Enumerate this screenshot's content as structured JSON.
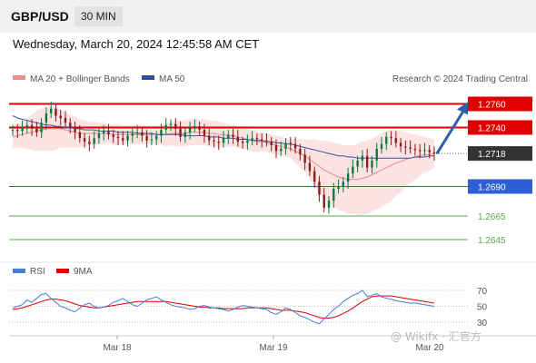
{
  "header": {
    "symbol": "GBP/USD",
    "timeframe": "30 MIN"
  },
  "datetime": "Wednesday, March 20, 2024 12:45:58 AM CET",
  "legend": {
    "ma20_bb": "MA 20 + Bollinger Bands",
    "ma50": "MA 50",
    "rsi": "RSI",
    "ma9": "9MA"
  },
  "credit": "Research © 2024 Trading Central",
  "watermark": "@ Wikifx · 汇官方",
  "colors": {
    "resistance": "#e00000",
    "pivot": "#2d5fd6",
    "support": "#5aa84a",
    "candle_up": "#0a7a3a",
    "candle_down": "#8b1d1d",
    "bb_fill": "#fbd9d9",
    "ma20": "#e68a8a",
    "ma50": "#3a4fa0",
    "rsi": "#4a7bd6",
    "ma9": "#e00000",
    "current_price_tag": "#333333",
    "arrow": "#2f5ea8"
  },
  "chart_data": {
    "type": "candlestick",
    "instrument": "GBP/USD",
    "interval": "30 MIN",
    "ylim": [
      1.2625,
      1.2775
    ],
    "x_ticks": [
      "Mar 18",
      "Mar 19",
      "Mar 20"
    ],
    "levels": [
      {
        "value": 1.276,
        "label": "1.2760",
        "kind": "resistance"
      },
      {
        "value": 1.274,
        "label": "1.2740",
        "kind": "resistance"
      },
      {
        "value": 1.2718,
        "label": "1.2718",
        "kind": "current"
      },
      {
        "value": 1.269,
        "label": "1.2690",
        "kind": "pivot"
      },
      {
        "value": 1.2665,
        "label": "1.2665",
        "kind": "support"
      },
      {
        "value": 1.2645,
        "label": "1.2645",
        "kind": "support"
      }
    ],
    "close": [
      1.2738,
      1.2737,
      1.274,
      1.2742,
      1.2739,
      1.2736,
      1.2744,
      1.2752,
      1.2756,
      1.275,
      1.2748,
      1.2744,
      1.274,
      1.2736,
      1.2731,
      1.2728,
      1.2726,
      1.2731,
      1.2735,
      1.2737,
      1.2734,
      1.2732,
      1.2731,
      1.2729,
      1.2733,
      1.2735,
      1.2736,
      1.2733,
      1.2729,
      1.273,
      1.2733,
      1.2738,
      1.2742,
      1.2743,
      1.2739,
      1.2732,
      1.2736,
      1.274,
      1.2741,
      1.2738,
      1.2733,
      1.2729,
      1.2728,
      1.2727,
      1.2731,
      1.2734,
      1.2732,
      1.2728,
      1.2727,
      1.2729,
      1.2731,
      1.273,
      1.2729,
      1.2728,
      1.2725,
      1.272,
      1.2722,
      1.2727,
      1.2726,
      1.2722,
      1.2717,
      1.271,
      1.2703,
      1.2694,
      1.2683,
      1.2672,
      1.2678,
      1.2688,
      1.269,
      1.2694,
      1.2701,
      1.2707,
      1.2712,
      1.2716,
      1.2706,
      1.2712,
      1.2722,
      1.2726,
      1.2732,
      1.2731,
      1.2727,
      1.2724,
      1.2723,
      1.2722,
      1.2721,
      1.272,
      1.2721,
      1.2719,
      1.2718
    ],
    "ma20": [
      1.2732,
      1.2733,
      1.2734,
      1.2735,
      1.2736,
      1.2737,
      1.2738,
      1.2739,
      1.2739,
      1.2739,
      1.2739,
      1.2738,
      1.2737,
      1.2736,
      1.2735,
      1.2735,
      1.2735,
      1.2735,
      1.2735,
      1.2735,
      1.2735,
      1.2734,
      1.2734,
      1.2734,
      1.2734,
      1.2734,
      1.2734,
      1.2734,
      1.2734,
      1.2734,
      1.2734,
      1.2734,
      1.2734,
      1.2735,
      1.2735,
      1.2735,
      1.2735,
      1.2736,
      1.2736,
      1.2736,
      1.2736,
      1.2735,
      1.2735,
      1.2734,
      1.2734,
      1.2733,
      1.2733,
      1.2732,
      1.2731,
      1.273,
      1.2729,
      1.2728,
      1.2728,
      1.2727,
      1.2726,
      1.2725,
      1.2724,
      1.2723,
      1.2722,
      1.272,
      1.2718,
      1.2716,
      1.2713,
      1.271,
      1.2707,
      1.2704,
      1.2702,
      1.27,
      1.2698,
      1.2697,
      1.2696,
      1.2696,
      1.2696,
      1.2697,
      1.2698,
      1.27,
      1.2702,
      1.2704,
      1.2706,
      1.2708,
      1.271,
      1.2711,
      1.2713,
      1.2714,
      1.2715,
      1.2716,
      1.2717,
      1.2717,
      1.2718
    ],
    "bb_upper": [
      1.2742,
      1.2743,
      1.2745,
      1.2748,
      1.2751,
      1.2754,
      1.2756,
      1.2758,
      1.2758,
      1.2757,
      1.2755,
      1.2753,
      1.2751,
      1.2749,
      1.2747,
      1.2746,
      1.2745,
      1.2745,
      1.2744,
      1.2744,
      1.2743,
      1.2743,
      1.2743,
      1.2742,
      1.2742,
      1.2742,
      1.2742,
      1.2742,
      1.2742,
      1.2742,
      1.2742,
      1.2743,
      1.2744,
      1.2745,
      1.2746,
      1.2746,
      1.2746,
      1.2747,
      1.2747,
      1.2747,
      1.2747,
      1.2746,
      1.2746,
      1.2745,
      1.2744,
      1.2743,
      1.2742,
      1.2741,
      1.274,
      1.2739,
      1.2738,
      1.2737,
      1.2736,
      1.2735,
      1.2734,
      1.2733,
      1.2732,
      1.2731,
      1.273,
      1.273,
      1.273,
      1.273,
      1.273,
      1.273,
      1.2729,
      1.2729,
      1.2728,
      1.2727,
      1.2726,
      1.2725,
      1.2725,
      1.2725,
      1.2726,
      1.2728,
      1.2729,
      1.2731,
      1.2733,
      1.2735,
      1.2737,
      1.2738,
      1.2738,
      1.2737,
      1.2736,
      1.2735,
      1.2734,
      1.2733,
      1.2732,
      1.2731,
      1.273
    ],
    "bb_lower": [
      1.2722,
      1.2723,
      1.2723,
      1.2722,
      1.2721,
      1.272,
      1.272,
      1.272,
      1.272,
      1.2721,
      1.2723,
      1.2723,
      1.2723,
      1.2723,
      1.2723,
      1.2724,
      1.2725,
      1.2725,
      1.2726,
      1.2726,
      1.2727,
      1.2725,
      1.2725,
      1.2726,
      1.2726,
      1.2726,
      1.2726,
      1.2726,
      1.2726,
      1.2726,
      1.2726,
      1.2725,
      1.2724,
      1.2725,
      1.2724,
      1.2724,
      1.2724,
      1.2725,
      1.2725,
      1.2725,
      1.2725,
      1.2724,
      1.2724,
      1.2723,
      1.2724,
      1.2723,
      1.2724,
      1.2723,
      1.2722,
      1.2721,
      1.272,
      1.2719,
      1.272,
      1.2719,
      1.2718,
      1.2717,
      1.2716,
      1.2715,
      1.2714,
      1.271,
      1.2706,
      1.2702,
      1.2696,
      1.269,
      1.2685,
      1.2679,
      1.2676,
      1.2673,
      1.267,
      1.2669,
      1.2667,
      1.2667,
      1.2666,
      1.2666,
      1.2667,
      1.2669,
      1.2671,
      1.2673,
      1.2675,
      1.2678,
      1.2682,
      1.2685,
      1.269,
      1.2693,
      1.2696,
      1.2699,
      1.2702,
      1.2703,
      1.2706
    ],
    "ma50": [
      1.275,
      1.2748,
      1.2747,
      1.2746,
      1.2745,
      1.2744,
      1.2743,
      1.2742,
      1.2742,
      1.2741,
      1.2741,
      1.274,
      1.274,
      1.2739,
      1.2739,
      1.2738,
      1.2738,
      1.2738,
      1.2737,
      1.2737,
      1.2737,
      1.2737,
      1.2736,
      1.2736,
      1.2736,
      1.2736,
      1.2735,
      1.2735,
      1.2735,
      1.2735,
      1.2734,
      1.2734,
      1.2734,
      1.2734,
      1.2734,
      1.2734,
      1.2733,
      1.2733,
      1.2733,
      1.2733,
      1.2733,
      1.2732,
      1.2732,
      1.2732,
      1.2731,
      1.2731,
      1.2731,
      1.273,
      1.273,
      1.273,
      1.2729,
      1.2729,
      1.2729,
      1.2728,
      1.2728,
      1.2727,
      1.2727,
      1.2726,
      1.2726,
      1.2725,
      1.2724,
      1.2723,
      1.2722,
      1.2721,
      1.272,
      1.2719,
      1.2718,
      1.2717,
      1.2716,
      1.2716,
      1.2715,
      1.2715,
      1.2714,
      1.2714,
      1.2714,
      1.2714,
      1.2714,
      1.2714,
      1.2714,
      1.2714,
      1.2714,
      1.2714,
      1.2714,
      1.2714,
      1.2715,
      1.2715,
      1.2715,
      1.2716,
      1.2716
    ],
    "projection": {
      "from": 1.2718,
      "to": 1.276
    },
    "rsi": {
      "levels": [
        70,
        50,
        30
      ],
      "rsi": [
        48,
        50,
        52,
        58,
        55,
        60,
        65,
        66,
        60,
        55,
        50,
        48,
        45,
        43,
        48,
        52,
        54,
        50,
        48,
        49,
        51,
        55,
        57,
        60,
        56,
        52,
        50,
        54,
        58,
        60,
        62,
        58,
        55,
        52,
        50,
        49,
        48,
        46,
        47,
        50,
        51,
        49,
        48,
        47,
        46,
        44,
        46,
        49,
        51,
        50,
        49,
        48,
        47,
        46,
        42,
        40,
        43,
        48,
        46,
        42,
        38,
        36,
        33,
        30,
        28,
        34,
        40,
        46,
        50,
        56,
        60,
        64,
        66,
        70,
        62,
        64,
        66,
        62,
        60,
        59,
        57,
        56,
        55,
        54,
        54,
        53,
        52,
        51,
        50
      ],
      "ma9": [
        46,
        47,
        48,
        50,
        52,
        54,
        56,
        58,
        59,
        59,
        58,
        57,
        55,
        53,
        51,
        50,
        49,
        48,
        48,
        49,
        50,
        51,
        52,
        53,
        54,
        55,
        56,
        56,
        56,
        56,
        56,
        56,
        56,
        55,
        54,
        53,
        52,
        51,
        50,
        49,
        49,
        48,
        48,
        48,
        47,
        47,
        47,
        47,
        47,
        48,
        48,
        48,
        48,
        48,
        47,
        46,
        45,
        45,
        45,
        44,
        43,
        42,
        40,
        38,
        36,
        35,
        35,
        36,
        38,
        41,
        44,
        48,
        52,
        56,
        59,
        62,
        63,
        63,
        63,
        63,
        62,
        61,
        60,
        59,
        58,
        57,
        56,
        55,
        54
      ]
    }
  }
}
